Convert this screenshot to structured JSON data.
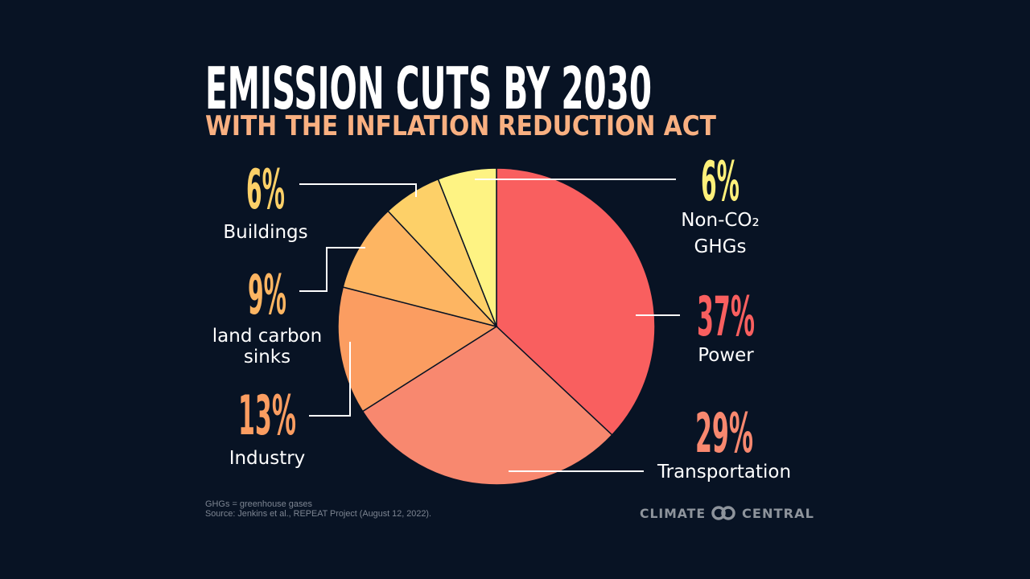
{
  "chart_data": {
    "type": "pie",
    "title": "EMISSION CUTS BY 2030",
    "subtitle": "WITH THE INFLATION REDUCTION ACT",
    "start": "top",
    "direction": "clockwise",
    "slices": [
      {
        "label": "Power",
        "label_lines": [
          "Power"
        ],
        "value": 37,
        "value_label": "37%",
        "color": "#F95F5F",
        "label_color": "#F95F5F"
      },
      {
        "label": "Transportation",
        "label_lines": [
          "Transportation"
        ],
        "value": 29,
        "value_label": "29%",
        "color": "#F8886F",
        "label_color": "#F8886F"
      },
      {
        "label": "Industry",
        "label_lines": [
          "Industry"
        ],
        "value": 13,
        "value_label": "13%",
        "color": "#FB9D61",
        "label_color": "#FB9D61"
      },
      {
        "label": "land carbon sinks",
        "label_lines": [
          "land carbon",
          "sinks"
        ],
        "value": 9,
        "value_label": "9%",
        "color": "#FDB562",
        "label_color": "#FDB562"
      },
      {
        "label": "Buildings",
        "label_lines": [
          "Buildings"
        ],
        "value": 6,
        "value_label": "6%",
        "color": "#FDD068",
        "label_color": "#FDD068"
      },
      {
        "label": "Non-CO₂ GHGs",
        "label_lines": [
          "Non-CO₂",
          "GHGs"
        ],
        "value": 6,
        "value_label": "6%",
        "color": "#FEF383",
        "label_color": "#FEF07A"
      }
    ]
  },
  "footer": {
    "note": "GHGs = greenhouse gases",
    "source": "Source: Jenkins et al., REPEAT Project (August 12, 2022).",
    "logo_left": "CLIMATE",
    "logo_right": "CENTRAL"
  },
  "colors": {
    "background": "#081324",
    "title": "#FFFFFF",
    "subtitle": "#F9B081"
  }
}
